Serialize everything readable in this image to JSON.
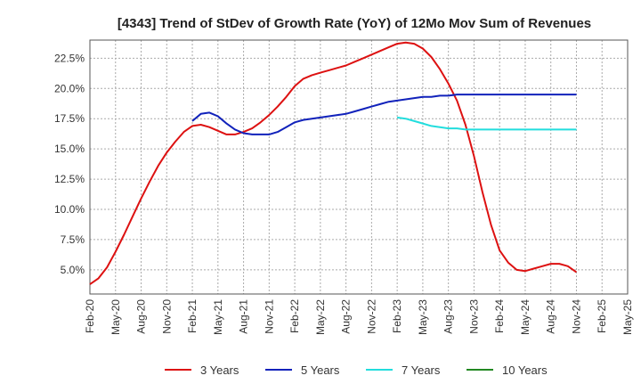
{
  "chart_data": {
    "type": "line",
    "title": "[4343]  Trend of StDev of Growth Rate (YoY) of 12Mo Mov Sum of Revenues",
    "xlabel": "",
    "ylabel": "",
    "x_ticks": [
      "Feb-20",
      "May-20",
      "Aug-20",
      "Nov-20",
      "Feb-21",
      "May-21",
      "Aug-21",
      "Nov-21",
      "Feb-22",
      "May-22",
      "Aug-22",
      "Nov-22",
      "Feb-23",
      "May-23",
      "Aug-23",
      "Nov-23",
      "Feb-24",
      "May-24",
      "Aug-24",
      "Nov-24",
      "Feb-25",
      "May-25"
    ],
    "y_ticks": [
      "5.0%",
      "7.5%",
      "10.0%",
      "12.5%",
      "15.0%",
      "17.5%",
      "20.0%",
      "22.5%"
    ],
    "y_tick_values": [
      5.0,
      7.5,
      10.0,
      12.5,
      15.0,
      17.5,
      20.0,
      22.5
    ],
    "ylim": [
      3.0,
      24.0
    ],
    "xlim": [
      0,
      63
    ],
    "grid": true,
    "legend_position": "bottom",
    "series": [
      {
        "name": "3 Years",
        "color": "#dd1111",
        "x_start": 0,
        "values": [
          3.8,
          4.3,
          5.2,
          6.5,
          7.9,
          9.4,
          10.9,
          12.3,
          13.6,
          14.7,
          15.6,
          16.4,
          16.9,
          17.0,
          16.8,
          16.5,
          16.2,
          16.2,
          16.4,
          16.7,
          17.2,
          17.8,
          18.5,
          19.3,
          20.2,
          20.8,
          21.1,
          21.3,
          21.5,
          21.7,
          21.9,
          22.2,
          22.5,
          22.8,
          23.1,
          23.4,
          23.7,
          23.8,
          23.7,
          23.3,
          22.6,
          21.6,
          20.4,
          19.0,
          17.0,
          14.4,
          11.4,
          8.7,
          6.6,
          5.6,
          5.0,
          4.9,
          5.1,
          5.3,
          5.5,
          5.5,
          5.3,
          4.8
        ]
      },
      {
        "name": "5 Years",
        "color": "#1122bb",
        "x_start": 12,
        "values": [
          17.3,
          17.9,
          18.0,
          17.7,
          17.1,
          16.6,
          16.3,
          16.2,
          16.2,
          16.2,
          16.4,
          16.8,
          17.2,
          17.4,
          17.5,
          17.6,
          17.7,
          17.8,
          17.9,
          18.1,
          18.3,
          18.5,
          18.7,
          18.9,
          19.0,
          19.1,
          19.2,
          19.3,
          19.3,
          19.4,
          19.4,
          19.5,
          19.5,
          19.5,
          19.5,
          19.5,
          19.5,
          19.5,
          19.5,
          19.5,
          19.5,
          19.5,
          19.5,
          19.5,
          19.5,
          19.5
        ]
      },
      {
        "name": "7 Years",
        "color": "#22dddd",
        "x_start": 36,
        "values": [
          17.6,
          17.5,
          17.3,
          17.1,
          16.9,
          16.8,
          16.7,
          16.7,
          16.6,
          16.6,
          16.6,
          16.6,
          16.6,
          16.6,
          16.6,
          16.6,
          16.6,
          16.6,
          16.6,
          16.6,
          16.6,
          16.6
        ]
      },
      {
        "name": "10 Years",
        "color": "#228822",
        "x_start": 0,
        "values": []
      }
    ]
  }
}
